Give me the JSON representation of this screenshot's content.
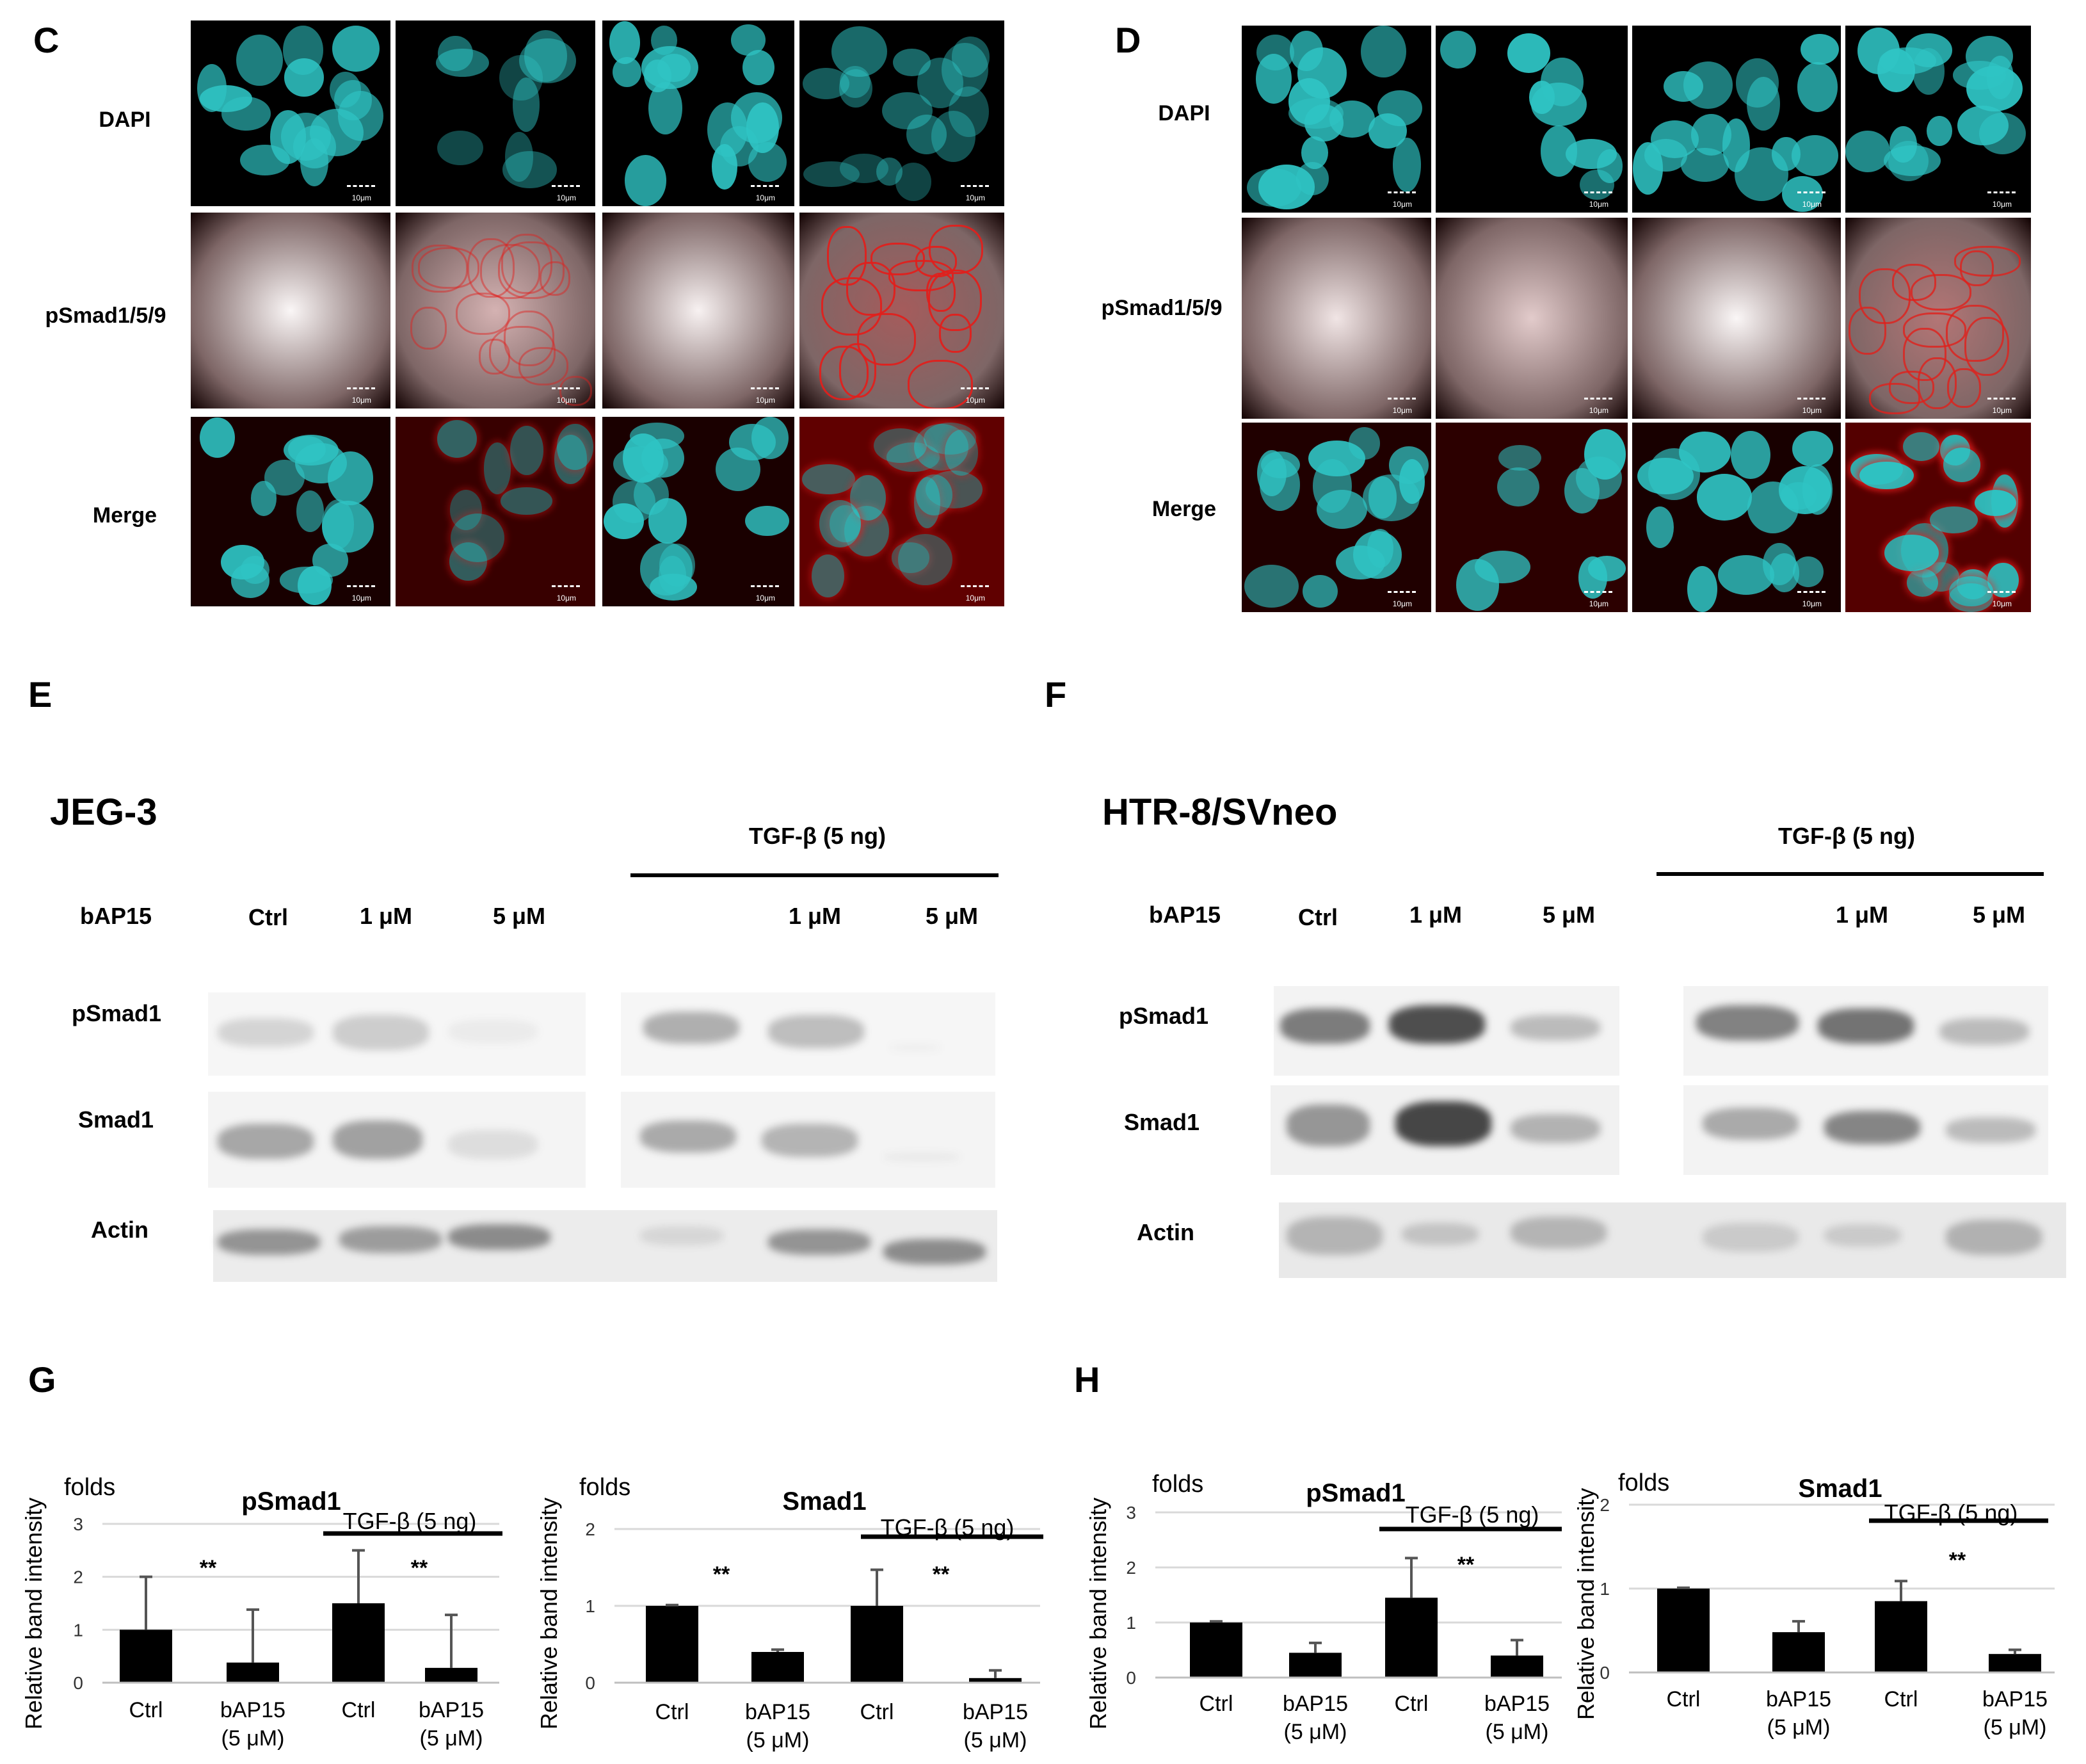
{
  "panels": {
    "C": {
      "letter": "C",
      "rows": [
        "DAPI",
        "pSmad1/5/9",
        "Merge"
      ],
      "scale": "10μm"
    },
    "D": {
      "letter": "D",
      "rows": [
        "DAPI",
        "pSmad1/5/9",
        "Merge"
      ],
      "scale": "10μm"
    },
    "E": {
      "letter": "E",
      "cell_line": "JEG-3",
      "treatment": "TGF-β (5 ng)",
      "lane_header": "bAP15",
      "lanes": [
        "Ctrl",
        "1 μM",
        "5 μM",
        "1 μM",
        "5 μM"
      ],
      "proteins": [
        "pSmad1",
        "Smad1",
        "Actin"
      ]
    },
    "F": {
      "letter": "F",
      "cell_line": "HTR-8/SVneo",
      "treatment": "TGF-β (5 ng)",
      "lane_header": "bAP15",
      "lanes": [
        "Ctrl",
        "1 μM",
        "5 μM",
        "1 μM",
        "5 μM"
      ],
      "proteins": [
        "pSmad1",
        "Smad1",
        "Actin"
      ]
    },
    "G": {
      "letter": "G"
    },
    "H": {
      "letter": "H"
    }
  },
  "chart_data": [
    {
      "type": "bar",
      "panel": "G",
      "title": "pSmad1",
      "ylabel": "Relative band intensity",
      "unit_label": "folds",
      "treatment": "TGF-β (5 ng)",
      "significance": [
        "**",
        "**"
      ],
      "categories": [
        "Ctrl",
        "bAP15\n(5 μM)",
        "Ctrl",
        "bAP15\n(5 μM)"
      ],
      "values": [
        1.0,
        0.38,
        1.5,
        0.28
      ],
      "errors": [
        1.0,
        1.0,
        1.0,
        1.0
      ],
      "ylim": [
        0,
        3
      ],
      "yticks": [
        "0",
        "1",
        "2",
        "3"
      ]
    },
    {
      "type": "bar",
      "panel": "G",
      "title": "Smad1",
      "ylabel": "Relative band intensity",
      "unit_label": "folds",
      "treatment": "TGF-β (5 ng)",
      "significance": [
        "**",
        "**"
      ],
      "categories": [
        "Ctrl",
        "bAP15\n(5 μM)",
        "Ctrl",
        "bAP15\n(5 μM)"
      ],
      "values": [
        1.0,
        0.4,
        1.0,
        0.06
      ],
      "errors": [
        0.01,
        0.03,
        0.47,
        0.1
      ],
      "ylim": [
        0,
        2
      ],
      "yticks": [
        "0",
        "1",
        "2"
      ]
    },
    {
      "type": "bar",
      "panel": "H",
      "title": "pSmad1",
      "ylabel": "Relative band intensity",
      "unit_label": "folds",
      "treatment": "TGF-β (5 ng)",
      "significance": [
        "**"
      ],
      "categories": [
        "Ctrl",
        "bAP15\n(5 μM)",
        "Ctrl",
        "bAP15\n(5 μM)"
      ],
      "values": [
        1.0,
        0.45,
        1.45,
        0.4
      ],
      "errors": [
        0.02,
        0.18,
        0.72,
        0.28
      ],
      "ylim": [
        0,
        3
      ],
      "yticks": [
        "0",
        "1",
        "2",
        "3"
      ]
    },
    {
      "type": "bar",
      "panel": "H",
      "title": "Smad1",
      "ylabel": "Relative band intensity",
      "unit_label": "folds",
      "treatment": "TGF-β (5 ng)",
      "significance": [
        "**"
      ],
      "categories": [
        "Ctrl",
        "bAP15\n(5 μM)",
        "Ctrl",
        "bAP15\n(5 μM)"
      ],
      "values": [
        1.0,
        0.48,
        0.85,
        0.22
      ],
      "errors": [
        0.01,
        0.13,
        0.24,
        0.05
      ],
      "ylim": [
        0,
        2
      ],
      "yticks": [
        "0",
        "1",
        "2"
      ]
    }
  ],
  "colors": {
    "nucleus": "#2fc4c4",
    "stain": "#e0201c",
    "bar": "#000000",
    "error": "#555555",
    "grid": "#d9d9d9"
  }
}
